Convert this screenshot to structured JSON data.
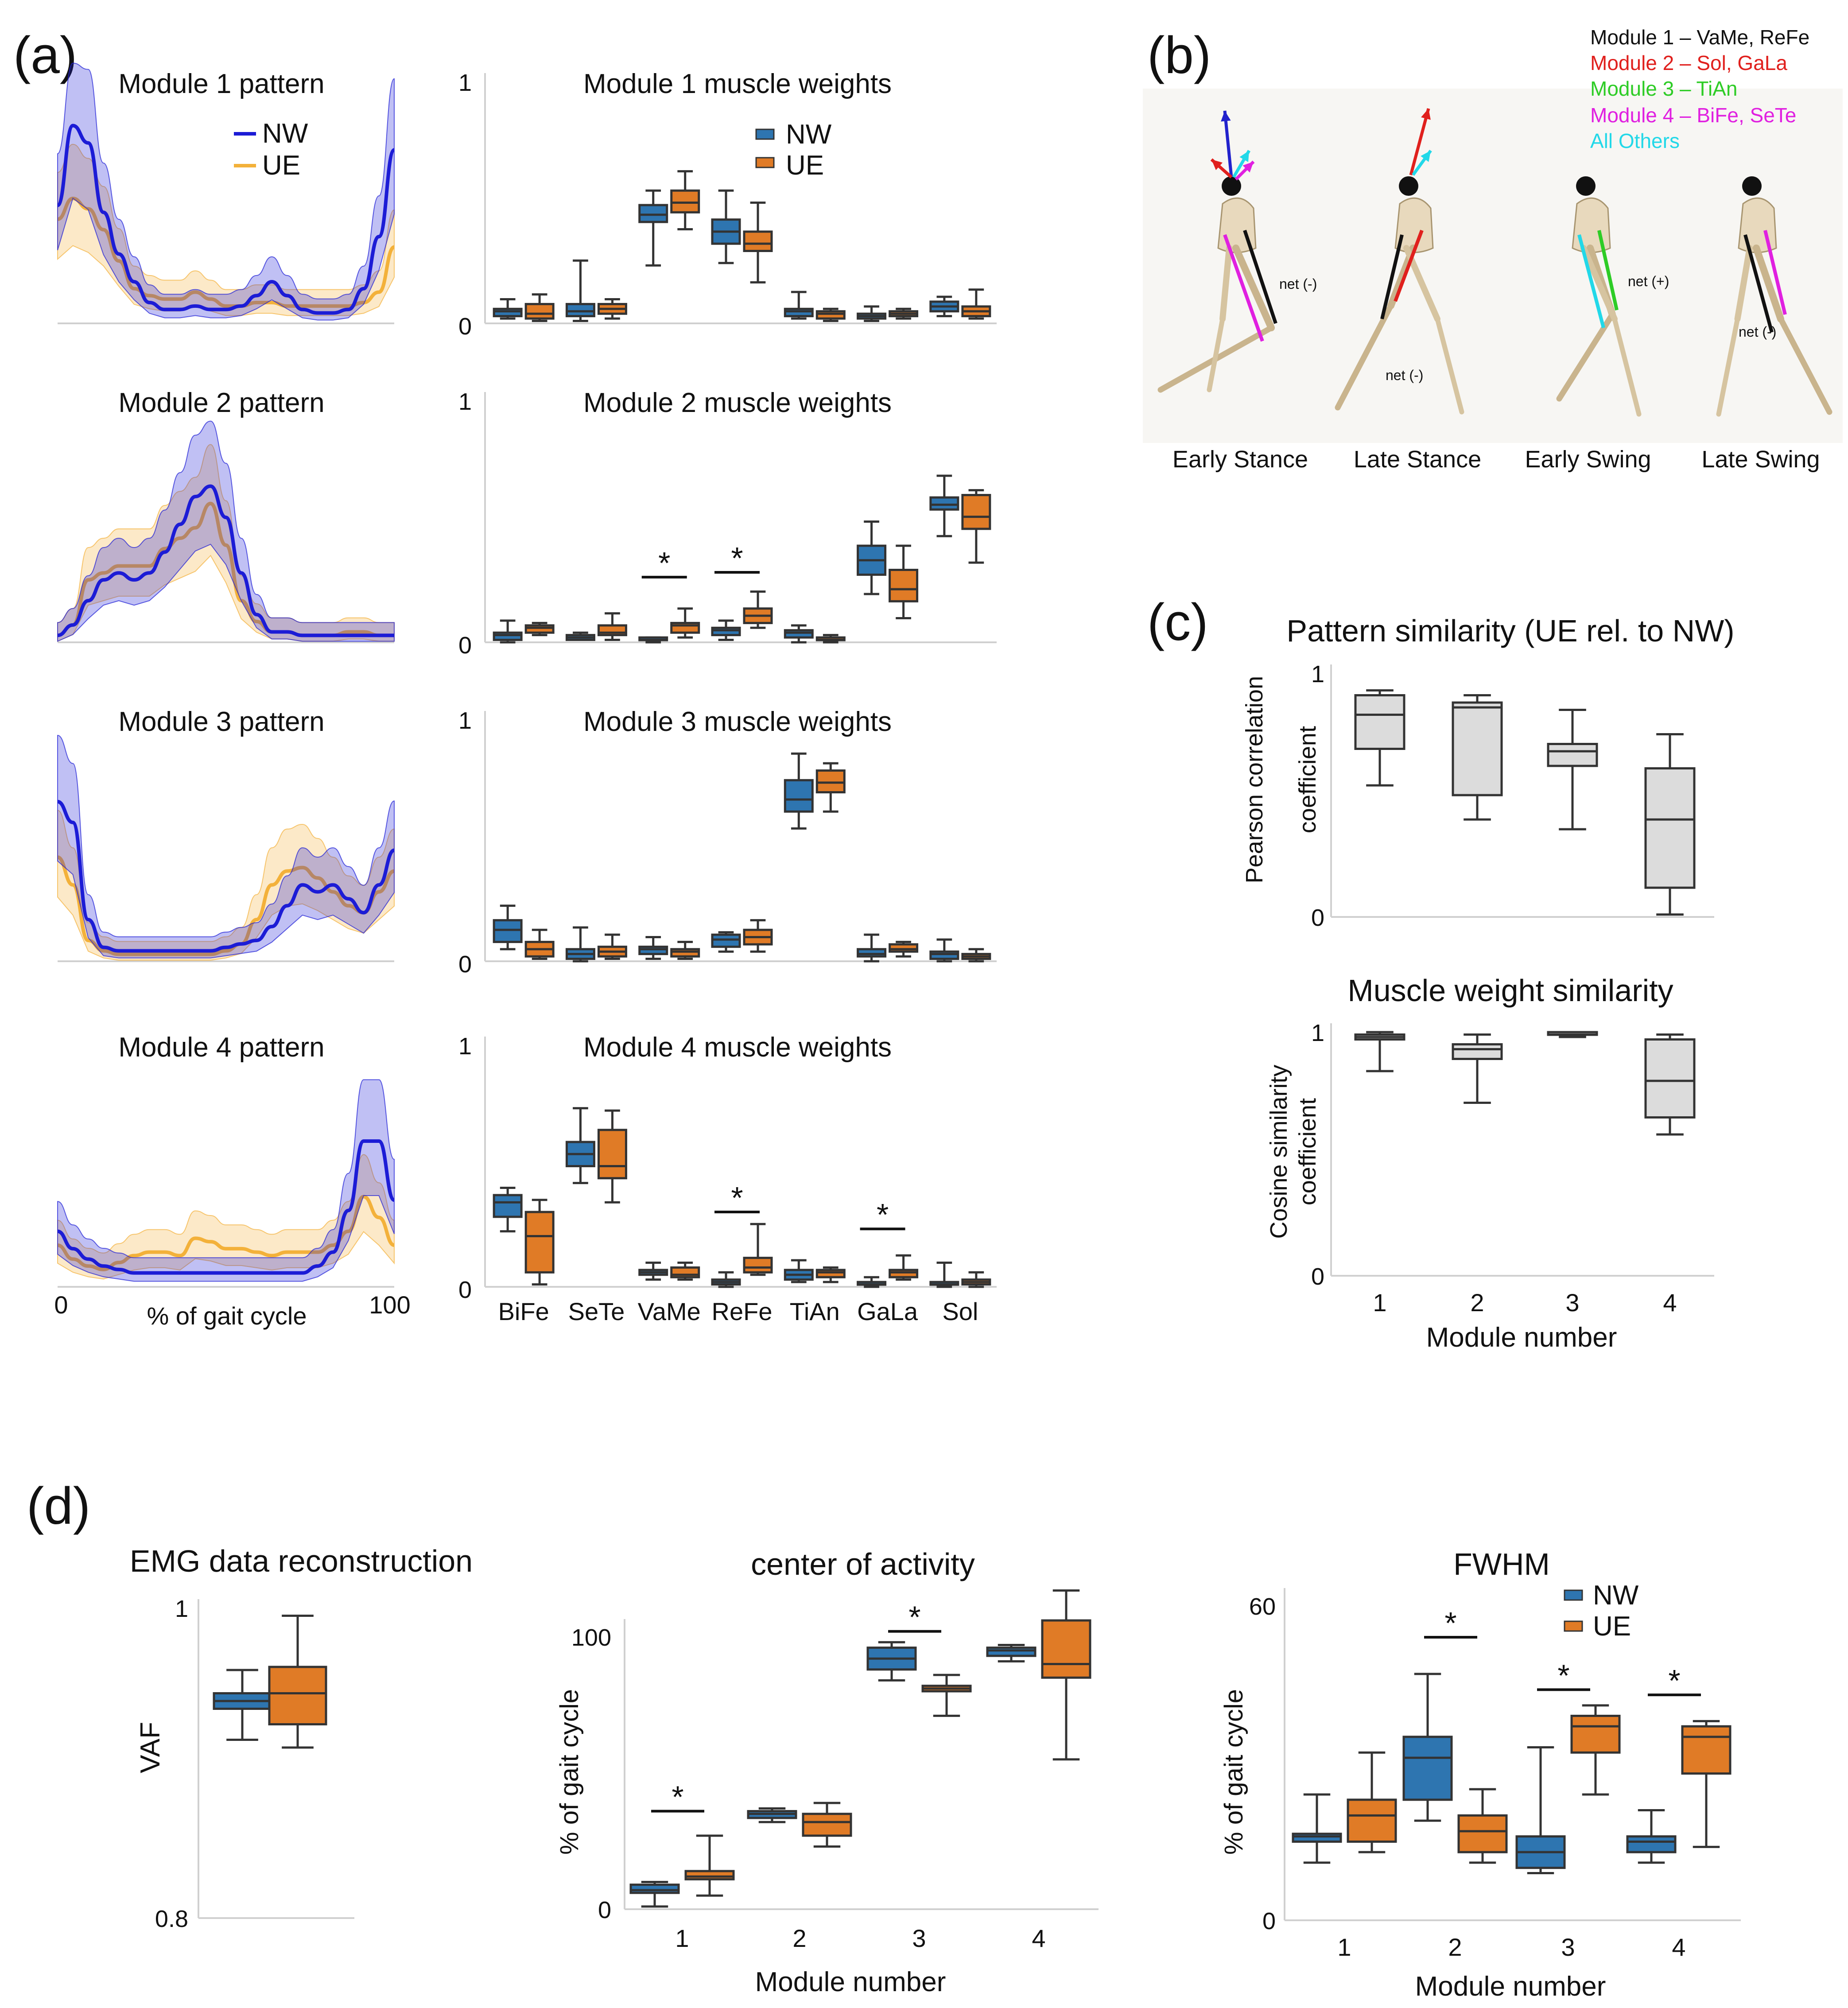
{
  "colors": {
    "nw": "#2e75b0",
    "ue": "#e07b26",
    "nw_line": "#1c1cd6",
    "ue_line": "#f3b13a",
    "grey": "#dcdcdc",
    "axis": "#d0d0d0",
    "box_edge": "#333333",
    "m1": "#111111",
    "m2": "#e0201d",
    "m3": "#2ecc26",
    "m4": "#e020e0",
    "others": "#22d8e8"
  },
  "panel_labels": {
    "a": "(a)",
    "b": "(b)",
    "c": "(c)",
    "d": "(d)"
  },
  "panel_a": {
    "legend_pattern": [
      "NW",
      "UE"
    ],
    "legend_weights": [
      "NW",
      "UE"
    ],
    "x_start": "0",
    "x_end": "100",
    "x_label": "% of gait cycle",
    "y_top": "1",
    "y_bottom": "0",
    "muscles": [
      "BiFe",
      "SeTe",
      "VaMe",
      "ReFe",
      "TiAn",
      "GaLa",
      "Sol"
    ],
    "modules": [
      {
        "pattern_title": "Module 1 pattern",
        "weights_title": "Module 1 muscle weights",
        "nw_curve": [
          0.34,
          0.57,
          0.52,
          0.32,
          0.2,
          0.12,
          0.06,
          0.04,
          0.04,
          0.05,
          0.04,
          0.04,
          0.05,
          0.08,
          0.12,
          0.08,
          0.04,
          0.03,
          0.03,
          0.04,
          0.1,
          0.25,
          0.5
        ],
        "ue_curve": [
          0.3,
          0.36,
          0.33,
          0.27,
          0.18,
          0.1,
          0.08,
          0.07,
          0.07,
          0.09,
          0.07,
          0.05,
          0.05,
          0.06,
          0.06,
          0.05,
          0.05,
          0.05,
          0.05,
          0.05,
          0.06,
          0.09,
          0.22
        ],
        "nw_boxes": [
          [
            0.02,
            0.03,
            0.05,
            0.06,
            0.1
          ],
          [
            0.01,
            0.03,
            0.05,
            0.08,
            0.26
          ],
          [
            0.24,
            0.42,
            0.45,
            0.49,
            0.55
          ],
          [
            0.25,
            0.33,
            0.38,
            0.43,
            0.55
          ],
          [
            0.02,
            0.03,
            0.05,
            0.06,
            0.13
          ],
          [
            0.01,
            0.02,
            0.03,
            0.04,
            0.07
          ],
          [
            0.03,
            0.05,
            0.07,
            0.09,
            0.11
          ]
        ],
        "ue_boxes": [
          [
            0.01,
            0.02,
            0.04,
            0.08,
            0.12
          ],
          [
            0.02,
            0.04,
            0.06,
            0.08,
            0.1
          ],
          [
            0.39,
            0.46,
            0.5,
            0.55,
            0.63
          ],
          [
            0.17,
            0.3,
            0.33,
            0.38,
            0.5
          ],
          [
            0.01,
            0.02,
            0.04,
            0.05,
            0.06
          ],
          [
            0.02,
            0.03,
            0.04,
            0.05,
            0.06
          ],
          [
            0.02,
            0.03,
            0.05,
            0.07,
            0.14
          ]
        ],
        "stars": []
      },
      {
        "pattern_title": "Module 2 pattern",
        "weights_title": "Module 2 muscle weights",
        "nw_curve": [
          0.02,
          0.05,
          0.12,
          0.18,
          0.2,
          0.18,
          0.2,
          0.26,
          0.34,
          0.42,
          0.45,
          0.36,
          0.2,
          0.08,
          0.03,
          0.03,
          0.02,
          0.02,
          0.02,
          0.02,
          0.02,
          0.02,
          0.02
        ],
        "ue_curve": [
          0.02,
          0.05,
          0.18,
          0.2,
          0.22,
          0.22,
          0.22,
          0.27,
          0.3,
          0.33,
          0.4,
          0.28,
          0.12,
          0.06,
          0.03,
          0.03,
          0.02,
          0.02,
          0.02,
          0.03,
          0.03,
          0.02,
          0.02
        ],
        "nw_boxes": [
          [
            0.0,
            0.01,
            0.03,
            0.04,
            0.09
          ],
          [
            0.01,
            0.01,
            0.02,
            0.03,
            0.04
          ],
          [
            0.0,
            0.01,
            0.01,
            0.02,
            0.02
          ],
          [
            0.01,
            0.03,
            0.05,
            0.06,
            0.09
          ],
          [
            0.0,
            0.02,
            0.04,
            0.05,
            0.07
          ],
          null,
          [
            0.44,
            0.55,
            0.57,
            0.6,
            0.69
          ]
        ],
        "ue_boxes": [
          [
            0.03,
            0.04,
            0.06,
            0.07,
            0.08
          ],
          [
            0.01,
            0.03,
            0.04,
            0.07,
            0.12
          ],
          [
            0.02,
            0.04,
            0.07,
            0.08,
            0.14
          ],
          [
            0.06,
            0.08,
            0.11,
            0.14,
            0.21
          ],
          [
            0.0,
            0.01,
            0.01,
            0.02,
            0.03
          ],
          [
            0.1,
            0.17,
            0.22,
            0.3,
            0.4
          ],
          [
            0.33,
            0.47,
            0.52,
            0.61,
            0.63
          ]
        ],
        "extra": {
          "nw_gala": [
            0.2,
            0.28,
            0.34,
            0.4,
            0.5
          ]
        },
        "stars": [
          {
            "muscle": 2,
            "y": 0.27
          },
          {
            "muscle": 3,
            "y": 0.29
          }
        ]
      },
      {
        "pattern_title": "Module 3 pattern",
        "weights_title": "Module 3 muscle weights",
        "nw_curve": [
          0.46,
          0.4,
          0.12,
          0.04,
          0.03,
          0.03,
          0.03,
          0.03,
          0.03,
          0.03,
          0.03,
          0.04,
          0.05,
          0.06,
          0.1,
          0.16,
          0.22,
          0.2,
          0.22,
          0.18,
          0.14,
          0.22,
          0.32
        ],
        "ue_curve": [
          0.3,
          0.22,
          0.06,
          0.03,
          0.02,
          0.02,
          0.02,
          0.02,
          0.02,
          0.02,
          0.02,
          0.03,
          0.05,
          0.12,
          0.22,
          0.26,
          0.27,
          0.24,
          0.2,
          0.16,
          0.14,
          0.2,
          0.26
        ],
        "nw_boxes": [
          [
            0.05,
            0.08,
            0.13,
            0.17,
            0.23
          ],
          [
            0.0,
            0.01,
            0.03,
            0.05,
            0.14
          ],
          [
            0.01,
            0.03,
            0.05,
            0.06,
            0.1
          ],
          [
            0.04,
            0.06,
            0.09,
            0.11,
            0.12
          ],
          [
            0.55,
            0.62,
            0.67,
            0.75,
            0.86
          ],
          [
            0.0,
            0.02,
            0.03,
            0.05,
            0.11
          ],
          [
            0.0,
            0.01,
            0.03,
            0.04,
            0.09
          ]
        ],
        "ue_boxes": [
          [
            0.01,
            0.02,
            0.05,
            0.08,
            0.13
          ],
          [
            0.01,
            0.02,
            0.04,
            0.06,
            0.11
          ],
          [
            0.01,
            0.02,
            0.04,
            0.05,
            0.08
          ],
          [
            0.04,
            0.07,
            0.1,
            0.13,
            0.17
          ],
          [
            0.62,
            0.7,
            0.74,
            0.79,
            0.82
          ],
          [
            0.02,
            0.04,
            0.05,
            0.07,
            0.08
          ],
          [
            0.0,
            0.01,
            0.02,
            0.03,
            0.05
          ]
        ],
        "stars": []
      },
      {
        "pattern_title": "Module 4 pattern",
        "weights_title": "Module 4 muscle weights",
        "nw_curve": [
          0.16,
          0.11,
          0.08,
          0.06,
          0.05,
          0.04,
          0.04,
          0.04,
          0.04,
          0.04,
          0.04,
          0.04,
          0.04,
          0.04,
          0.04,
          0.04,
          0.04,
          0.06,
          0.1,
          0.22,
          0.42,
          0.42,
          0.25
        ],
        "ue_curve": [
          0.12,
          0.08,
          0.06,
          0.05,
          0.07,
          0.09,
          0.1,
          0.1,
          0.09,
          0.14,
          0.13,
          0.11,
          0.11,
          0.1,
          0.09,
          0.1,
          0.1,
          0.1,
          0.12,
          0.16,
          0.26,
          0.2,
          0.12
        ],
        "nw_boxes": [
          [
            0.23,
            0.29,
            0.35,
            0.38,
            0.41
          ],
          [
            0.43,
            0.5,
            0.55,
            0.6,
            0.74
          ],
          [
            0.03,
            0.05,
            0.06,
            0.07,
            0.1
          ],
          [
            0.0,
            0.01,
            0.02,
            0.03,
            0.06
          ],
          [
            0.02,
            0.03,
            0.05,
            0.07,
            0.11
          ],
          [
            0.0,
            0.01,
            0.01,
            0.02,
            0.04
          ],
          [
            0.0,
            0.01,
            0.01,
            0.02,
            0.1
          ]
        ],
        "ue_boxes": [
          [
            0.01,
            0.06,
            0.21,
            0.31,
            0.36
          ],
          [
            0.35,
            0.45,
            0.5,
            0.65,
            0.73
          ],
          [
            0.03,
            0.04,
            0.05,
            0.08,
            0.1
          ],
          [
            0.05,
            0.06,
            0.08,
            0.12,
            0.26
          ],
          [
            0.02,
            0.04,
            0.06,
            0.07,
            0.08
          ],
          [
            0.03,
            0.04,
            0.06,
            0.07,
            0.13
          ],
          [
            0.0,
            0.01,
            0.02,
            0.03,
            0.06
          ]
        ],
        "stars": [
          {
            "muscle": 3,
            "y": 0.31
          },
          {
            "muscle": 5,
            "y": 0.24
          }
        ]
      }
    ]
  },
  "panel_b": {
    "legend": [
      "Module 1 – VaMe,  ReFe",
      "Module 2 – Sol, GaLa",
      "Module 3 – TiAn",
      "Module 4 – BiFe, SeTe",
      "All Others"
    ],
    "phases": [
      "Early Stance",
      "Late Stance",
      "Early Swing",
      "Late Swing"
    ],
    "net_labels": [
      "net (-)",
      "net (-)",
      "net (+)",
      "net (-)"
    ]
  },
  "panel_c": {
    "chart_data": [
      {
        "type": "box",
        "title": "Pattern similarity  (UE rel. to NW)",
        "ylabel": [
          "Pearson correlation",
          "coefficient"
        ],
        "ylim": [
          0,
          1
        ],
        "y_ticks": [
          "1",
          "0"
        ],
        "categories": [
          "1",
          "2",
          "3",
          "4"
        ],
        "boxes": [
          [
            0.54,
            0.69,
            0.83,
            0.91,
            0.93
          ],
          [
            0.4,
            0.5,
            0.86,
            0.88,
            0.91
          ],
          [
            0.36,
            0.62,
            0.68,
            0.71,
            0.85
          ],
          [
            0.01,
            0.12,
            0.4,
            0.61,
            0.75
          ]
        ]
      },
      {
        "type": "box",
        "title": "Muscle weight  similarity",
        "ylabel": [
          "Cosine similarity",
          "coefficient"
        ],
        "ylim": [
          0,
          1
        ],
        "y_ticks": [
          "1",
          "0"
        ],
        "categories": [
          "1",
          "2",
          "3",
          "4"
        ],
        "xlabel": "Module number",
        "boxes": [
          [
            0.84,
            0.97,
            0.98,
            0.99,
            1.0
          ],
          [
            0.71,
            0.89,
            0.93,
            0.95,
            0.99
          ],
          [
            0.98,
            0.99,
            0.99,
            1.0,
            1.0
          ],
          [
            0.58,
            0.65,
            0.8,
            0.97,
            0.99
          ]
        ]
      }
    ]
  },
  "panel_d": {
    "legend": [
      "NW",
      "UE"
    ],
    "chart_data": [
      {
        "type": "box",
        "title": "EMG data reconstruction",
        "ylabel": "VAF",
        "ylim": [
          0.8,
          1
        ],
        "y_ticks": [
          "1",
          "0.8"
        ],
        "nw": [
          0.915,
          0.935,
          0.94,
          0.945,
          0.96
        ],
        "ue": [
          0.91,
          0.925,
          0.945,
          0.962,
          0.995
        ]
      },
      {
        "type": "box",
        "title": "center of activity",
        "ylabel": "% of gait cycle",
        "ylim": [
          0,
          100
        ],
        "y_ticks": [
          "100",
          "0"
        ],
        "categories": [
          "1",
          "2",
          "3",
          "4"
        ],
        "xlabel": "Module number",
        "nw": [
          [
            1,
            6,
            7,
            9,
            10
          ],
          [
            32,
            33.5,
            35,
            36,
            37
          ],
          [
            84,
            88,
            92,
            96,
            98
          ],
          [
            91,
            93,
            95,
            96,
            97
          ]
        ],
        "ue": [
          [
            5,
            11,
            12,
            14,
            27
          ],
          [
            23,
            27,
            32,
            35,
            39
          ],
          [
            71,
            80,
            81,
            82,
            86
          ],
          [
            55,
            85,
            90,
            106,
            117
          ]
        ],
        "stars": [
          {
            "cat": 0,
            "y": 36
          },
          {
            "cat": 2,
            "y": 102
          }
        ]
      },
      {
        "type": "box",
        "title": "FWHM",
        "ylabel": "% of gait cycle",
        "ylim": [
          0,
          60
        ],
        "y_ticks": [
          "60",
          "0"
        ],
        "categories": [
          "1",
          "2",
          "3",
          "4"
        ],
        "xlabel": "Module number",
        "nw": [
          [
            11,
            15,
            16,
            16.5,
            24
          ],
          [
            19,
            23,
            31,
            35,
            47
          ],
          [
            9,
            10,
            13,
            16,
            33
          ],
          [
            11,
            13,
            15,
            16,
            21
          ]
        ],
        "ue": [
          [
            13,
            15,
            20,
            23,
            32
          ],
          [
            11,
            13,
            17,
            20,
            25
          ],
          [
            24,
            32,
            37,
            39,
            41
          ],
          [
            14,
            28,
            35,
            37,
            38
          ]
        ],
        "stars": [
          {
            "cat": 1,
            "y": 54
          },
          {
            "cat": 2,
            "y": 44
          },
          {
            "cat": 3,
            "y": 43
          }
        ]
      }
    ]
  }
}
